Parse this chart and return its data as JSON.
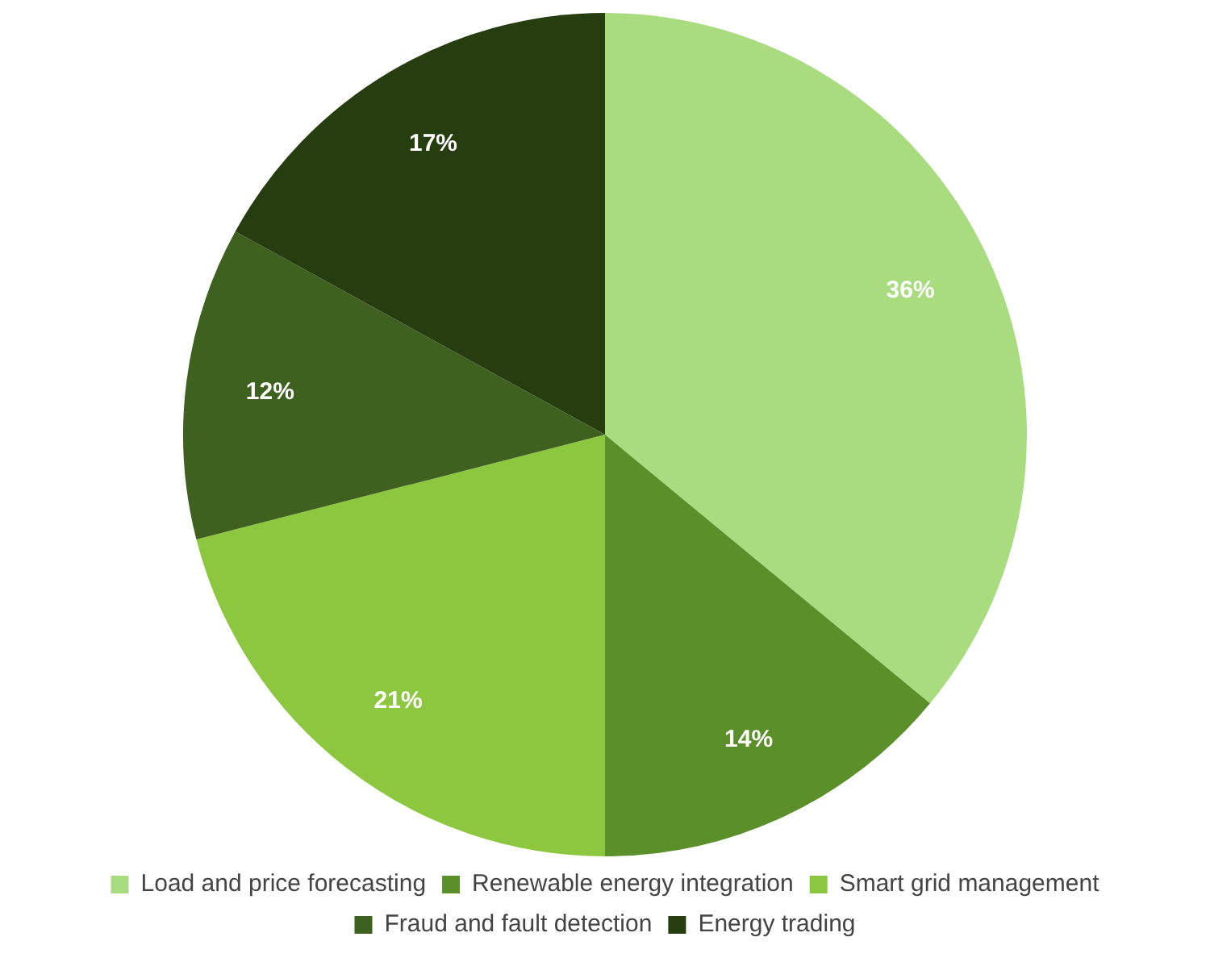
{
  "chart_data": {
    "type": "pie",
    "categories": [
      "Load and price forecasting",
      "Renewable energy integration",
      "Smart grid management",
      "Fraud and fault detection",
      "Energy trading"
    ],
    "values": [
      36,
      14,
      21,
      12,
      17
    ],
    "colors": [
      "#a9dc7f",
      "#5a8f29",
      "#8dc63f",
      "#3f6120",
      "#263d10"
    ],
    "value_labels": [
      "36%",
      "14%",
      "21%",
      "12%",
      "17%"
    ],
    "legend": "bottom"
  }
}
